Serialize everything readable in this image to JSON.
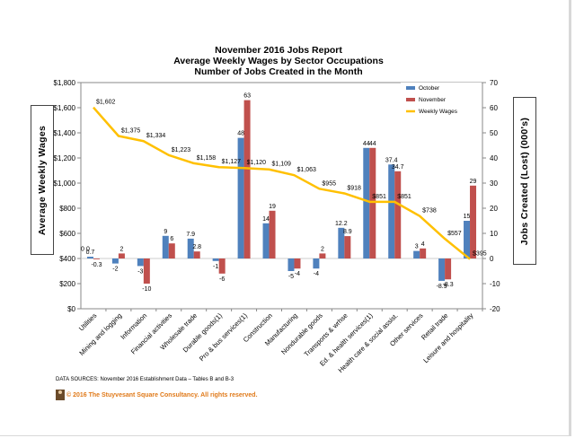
{
  "chart_data": {
    "type": "bar",
    "title": "November 2016 Jobs Report",
    "subtitle": "Average Weekly Wages by Sector Occupations",
    "subtitle2": "Number of Jobs Created in the Month",
    "ylabel_left": "Average Weekly Wages",
    "ylabel_right": "Jobs Created (Lost) (000's)",
    "ylim_left": [
      0,
      1800
    ],
    "ylim_right": [
      -20,
      70
    ],
    "left_ticks": [
      "$0",
      "$200",
      "$400",
      "$600",
      "$800",
      "$1,000",
      "$1,200",
      "$1,400",
      "$1,600",
      "$1,800"
    ],
    "right_ticks": [
      "-20",
      "-10",
      "0",
      "10",
      "20",
      "30",
      "40",
      "50",
      "60",
      "70"
    ],
    "categories": [
      "Utilities",
      "Mining and logging",
      "Information",
      "Financial activities",
      "Wholesale trade",
      "Durable goods(1)",
      "Pro & bus services(1)",
      "Construction",
      "Manufacturing",
      "Nondurable goods",
      "Transports & wrhse",
      "Ed. & health services(1)",
      "Health care & social assist.",
      "Other services",
      "Retail trade",
      "Leisure and hospitality"
    ],
    "legend_position": "top-right",
    "series": [
      {
        "name": "October",
        "axis": "right",
        "color": "#4f81bd",
        "values": [
          0.7,
          -2,
          -3,
          9,
          7.9,
          -1,
          48,
          14,
          -5,
          -4,
          12.2,
          44,
          37.4,
          3,
          -8.9,
          15
        ],
        "labels": [
          "0.7",
          "-2",
          "-3",
          "9",
          "7.9",
          "-1",
          "48",
          "14",
          "-5",
          "-4",
          "12.2",
          "44",
          "37.4",
          "3",
          "-8.9",
          "15"
        ]
      },
      {
        "name": "November",
        "axis": "right",
        "color": "#c0504d",
        "values": [
          -0.3,
          2,
          -10,
          6,
          2.8,
          -6,
          63,
          19,
          -4,
          2,
          8.9,
          44,
          34.7,
          4,
          -8.3,
          29
        ],
        "labels": [
          "-0.3",
          "2",
          "-10",
          "6",
          "2.8",
          "-6",
          "63",
          "19",
          "-4",
          "2",
          "8.9",
          "44",
          "34.7",
          "4",
          "-8.3",
          "29"
        ]
      },
      {
        "name": "Weekly Wages",
        "axis": "left",
        "color": "#ffc000",
        "values": [
          1602,
          1375,
          1334,
          1223,
          1158,
          1127,
          1120,
          1109,
          1063,
          955,
          918,
          851,
          851,
          738,
          557,
          395
        ],
        "labels": [
          "$1,602",
          "$1,375",
          "$1,334",
          "$1,223",
          "$1,158",
          "$1,127",
          "$1,120",
          "$1,109",
          "$1,063",
          "$955",
          "$918",
          "$851",
          "$851",
          "$738",
          "$557",
          "$395"
        ]
      }
    ],
    "extra_labels": [
      "0",
      "0"
    ],
    "grid": false
  },
  "footer": {
    "sources": "DATA SOURCES: November 2016 Establishment Data – Tables B and B-3",
    "copyright": "© 2016 The Stuyvesant Square Consultancy. All rights reserved."
  }
}
